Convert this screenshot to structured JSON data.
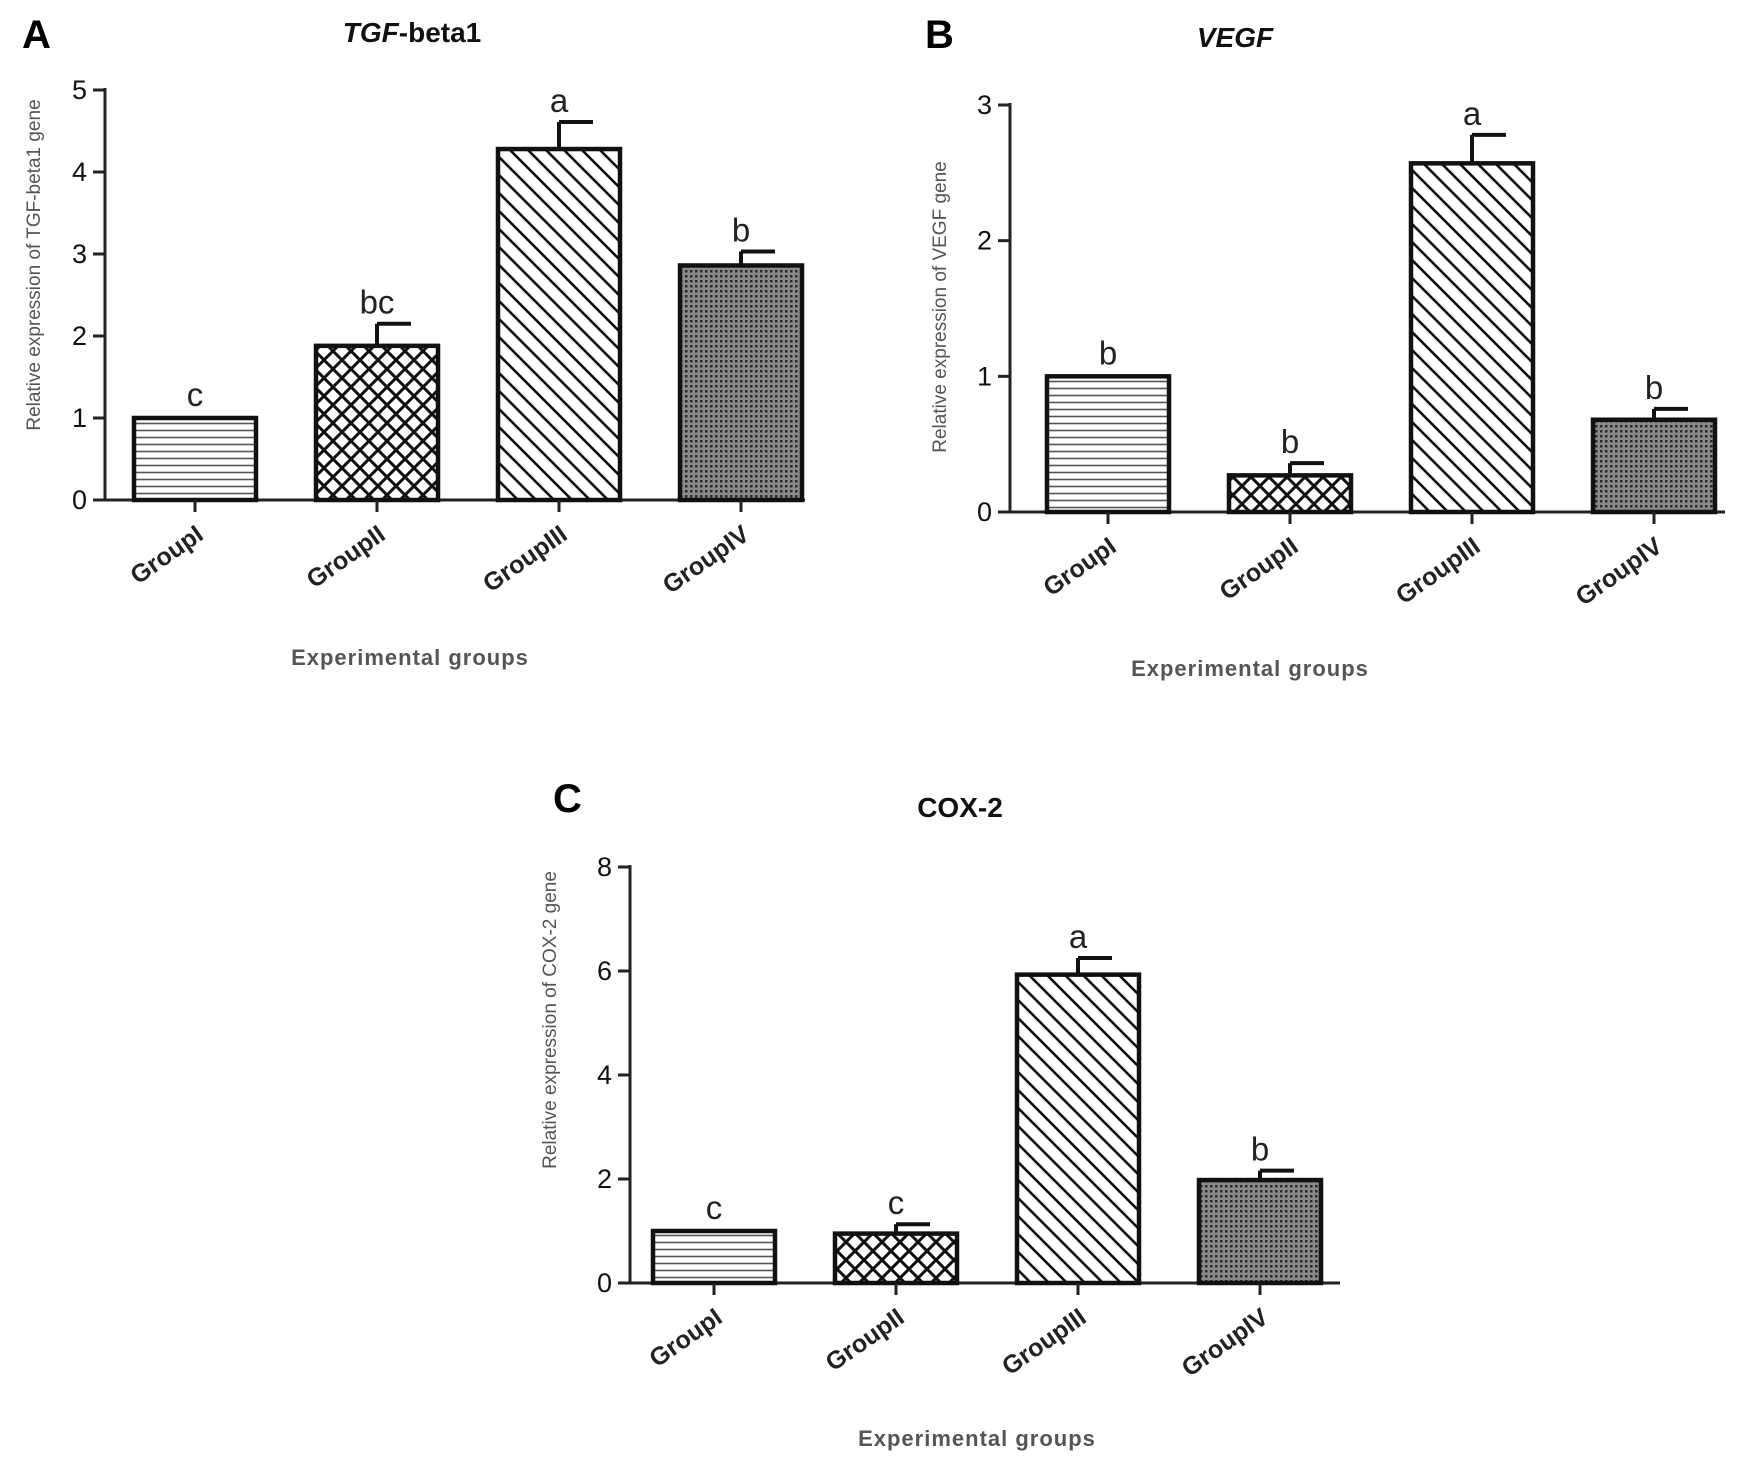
{
  "chart_data": [
    {
      "type": "bar",
      "panel": "A",
      "title": "TGF-beta1",
      "title_italic": "TGF",
      "title_rest": "-beta1",
      "ylabel": "Relative expression of TGF-beta1 gene",
      "xlabel": "Experimental groups",
      "categories": [
        "GroupI",
        "GroupII",
        "GroupIII",
        "GroupIV"
      ],
      "values": [
        1.0,
        1.88,
        4.28,
        2.86
      ],
      "errors": [
        0,
        0.27,
        0.33,
        0.17
      ],
      "significance": [
        "c",
        "bc",
        "a",
        "b"
      ],
      "patterns": [
        "hlines",
        "crosshatch",
        "diagonal",
        "dots"
      ],
      "ylim": [
        0,
        5
      ],
      "yticks": [
        0,
        1,
        2,
        3,
        4,
        5
      ],
      "grid": false
    },
    {
      "type": "bar",
      "panel": "B",
      "title": "VEGF",
      "title_italic": "VEGF",
      "title_rest": "",
      "ylabel": "Relative expression of VEGF gene",
      "xlabel": "Experimental groups",
      "categories": [
        "GroupI",
        "GroupII",
        "GroupIII",
        "GroupIV"
      ],
      "values": [
        1.0,
        0.27,
        2.57,
        0.68
      ],
      "errors": [
        0,
        0.09,
        0.21,
        0.08
      ],
      "significance": [
        "b",
        "b",
        "a",
        "b"
      ],
      "patterns": [
        "hlines",
        "crosshatch",
        "diagonal",
        "dots"
      ],
      "ylim": [
        0,
        3
      ],
      "yticks": [
        0,
        1,
        2,
        3
      ],
      "grid": false
    },
    {
      "type": "bar",
      "panel": "C",
      "title": "COX-2",
      "title_italic": "",
      "title_rest": "COX-2",
      "ylabel": "Relative expression of COX-2 gene",
      "xlabel": "Experimental groups",
      "categories": [
        "GroupI",
        "GroupII",
        "GroupIII",
        "GroupIV"
      ],
      "values": [
        1.0,
        0.95,
        5.93,
        1.98
      ],
      "errors": [
        0,
        0.18,
        0.32,
        0.18
      ],
      "significance": [
        "c",
        "c",
        "a",
        "b"
      ],
      "patterns": [
        "hlines",
        "crosshatch",
        "diagonal",
        "dots"
      ],
      "ylim": [
        0,
        8
      ],
      "yticks": [
        0,
        2,
        4,
        6,
        8
      ],
      "grid": false
    }
  ],
  "colors": {
    "ink": "#111111",
    "bar_fill": "#ffffff",
    "axis_label": "#555555"
  }
}
